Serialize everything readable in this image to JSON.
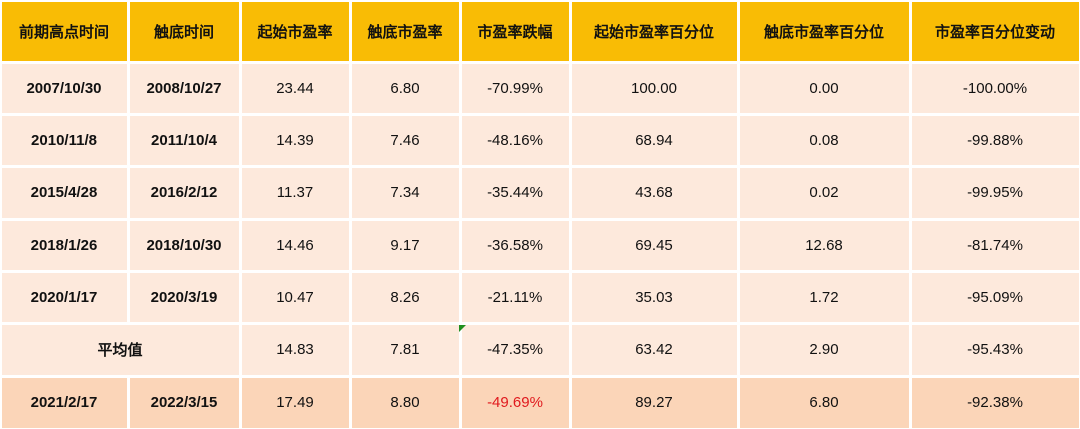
{
  "table": {
    "header": [
      "前期高点时间",
      "触底时间",
      "起始市盈率",
      "触底市盈率",
      "市盈率跌幅",
      "起始市盈率百分位",
      "触底市盈率百分位",
      "市盈率百分位变动"
    ],
    "rows": [
      [
        "2007/10/30",
        "2008/10/27",
        "23.44",
        "6.80",
        "-70.99%",
        "100.00",
        "0.00",
        "-100.00%"
      ],
      [
        "2010/11/8",
        "2011/10/4",
        "14.39",
        "7.46",
        "-48.16%",
        "68.94",
        "0.08",
        "-99.88%"
      ],
      [
        "2015/4/28",
        "2016/2/12",
        "11.37",
        "7.34",
        "-35.44%",
        "43.68",
        "0.02",
        "-99.95%"
      ],
      [
        "2018/1/26",
        "2018/10/30",
        "14.46",
        "9.17",
        "-36.58%",
        "69.45",
        "12.68",
        "-81.74%"
      ],
      [
        "2020/1/17",
        "2020/3/19",
        "10.47",
        "8.26",
        "-21.11%",
        "35.03",
        "1.72",
        "-95.09%"
      ],
      [
        "平均值",
        "14.83",
        "7.81",
        "-47.35%",
        "63.42",
        "2.90",
        "-95.43%"
      ],
      [
        "2021/2/17",
        "2022/3/15",
        "17.49",
        "8.80",
        "-49.69%",
        "89.27",
        "6.80",
        "-92.38%"
      ]
    ]
  }
}
